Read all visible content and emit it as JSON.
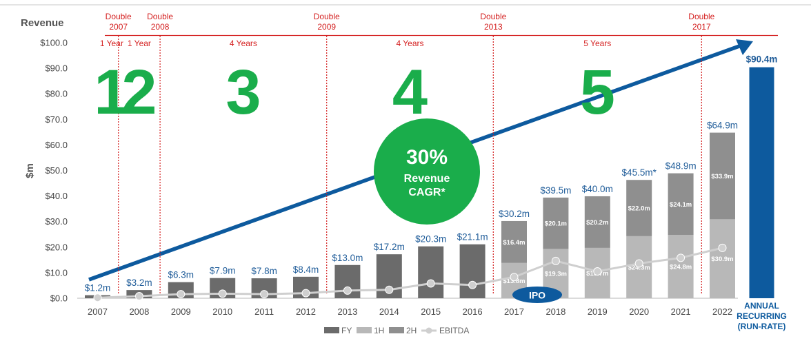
{
  "chart_data": {
    "type": "bar",
    "title": "Revenue",
    "ylabel": "$m",
    "ylim": [
      0,
      100
    ],
    "y_ticks": [
      "$0.0",
      "$10.0",
      "$20.0",
      "$30.0",
      "$40.0",
      "$50.0",
      "$60.0",
      "$70.0",
      "$80.0",
      "$90.0",
      "$100.0"
    ],
    "categories": [
      "2007",
      "2008",
      "2009",
      "2010",
      "2011",
      "2012",
      "2013",
      "2014",
      "2015",
      "2016",
      "2017",
      "2018",
      "2019",
      "2020",
      "2021",
      "2022"
    ],
    "total_labels": [
      "$1.2m",
      "$3.2m",
      "$6.3m",
      "$7.9m",
      "$7.8m",
      "$8.4m",
      "$13.0m",
      "$17.2m",
      "$20.3m",
      "$21.1m",
      "$30.2m",
      "$39.5m",
      "$40.0m",
      "$45.5m*",
      "$48.9m",
      "$64.9m"
    ],
    "series": [
      {
        "name": "FY",
        "values": [
          1.2,
          3.2,
          6.3,
          7.9,
          7.8,
          8.4,
          13.0,
          17.2,
          20.3,
          21.1,
          null,
          null,
          null,
          null,
          null,
          null
        ]
      },
      {
        "name": "1H",
        "values": [
          null,
          null,
          null,
          null,
          null,
          null,
          null,
          null,
          null,
          null,
          13.8,
          19.3,
          19.7,
          24.3,
          24.8,
          30.9
        ],
        "labels": [
          "",
          "",
          "",
          "",
          "",
          "",
          "",
          "",
          "",
          "",
          "$13.8m",
          "$19.3m",
          "$19.7m",
          "$24.3m",
          "$24.8m",
          "$30.9m"
        ]
      },
      {
        "name": "2H",
        "values": [
          null,
          null,
          null,
          null,
          null,
          null,
          null,
          null,
          null,
          null,
          16.4,
          20.1,
          20.2,
          22.0,
          24.1,
          33.9
        ],
        "labels": [
          "",
          "",
          "",
          "",
          "",
          "",
          "",
          "",
          "",
          "",
          "$16.4m",
          "$20.1m",
          "$20.2m",
          "$22.0m",
          "$24.1m",
          "$33.9m"
        ]
      },
      {
        "name": "EBITDA",
        "type": "line",
        "values": [
          0.2,
          0.8,
          1.6,
          1.8,
          1.6,
          2.0,
          3.0,
          3.3,
          5.8,
          5.2,
          8.3,
          14.6,
          10.5,
          13.6,
          15.8,
          19.7
        ]
      }
    ],
    "annual_recurring": {
      "value": 90.4,
      "label": "$90.4m",
      "category_lines": [
        "ANNUAL",
        "RECURRING",
        "(RUN-RATE)"
      ]
    },
    "doubling_markers": [
      {
        "lines": [
          "Double",
          "2007"
        ],
        "between": [
          0,
          1
        ],
        "period": "1 Year",
        "digit": "1"
      },
      {
        "lines": [
          "Double",
          "2008"
        ],
        "between": [
          1,
          2
        ],
        "period": "1 Year",
        "digit": "2"
      },
      {
        "lines": [
          "Double",
          "2009"
        ],
        "between": [
          5,
          6
        ],
        "period": "4 Years",
        "digit": "3"
      },
      {
        "lines": [
          "Double",
          "2013"
        ],
        "between": [
          9,
          10
        ],
        "period": "4 Years",
        "digit": "4"
      },
      {
        "lines": [
          "Double",
          "2017"
        ],
        "between": [
          14,
          15
        ],
        "period": "5 Years",
        "digit": "5"
      }
    ],
    "cagr_bubble": {
      "pct": "30%",
      "line1": "Revenue",
      "line2": "CAGR*"
    },
    "ipo_label": "IPO",
    "legend": [
      "FY",
      "1H",
      "2H",
      "EBITDA"
    ],
    "legend_position": "bottom",
    "grid": false,
    "colors": {
      "fy": "#6b6b6b",
      "h1": "#b8b8b8",
      "h2": "#8f8f8f",
      "ebitda": "#cfcfcf",
      "accent_blue": "#0d5a9e",
      "green": "#1aad4b",
      "red": "#d42020"
    }
  }
}
